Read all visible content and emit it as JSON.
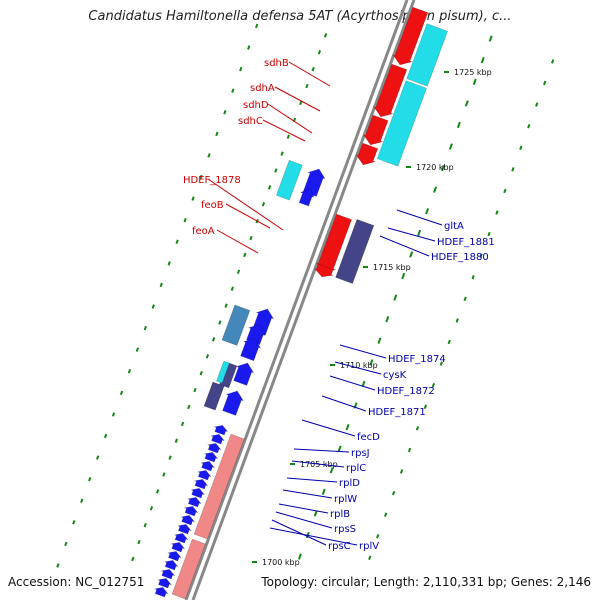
{
  "title": "Candidatus Hamiltonella defensa 5AT (Acyrthosiphon pisum), c...",
  "footer": {
    "accession": "Accession: NC_012751",
    "summary": "Topology: circular; Length: 2,110,331 bp; Genes: 2,146"
  },
  "colors": {
    "forward_cds": "#ee1111",
    "reverse_cds": "#1a1aee",
    "rna": "#22dde8",
    "other": "#444488",
    "pseudo": "#f08888",
    "tick": "#118811",
    "backbone": "#888888",
    "label_forward": "#cc0000",
    "label_reverse": "#0000aa"
  },
  "scale_labels": [
    "1725 kbp",
    "1720 kbp",
    "1715 kbp",
    "1710 kbp",
    "1705 kbp",
    "1700 kbp"
  ],
  "left_labels": [
    "sdhB",
    "sdhA",
    "sdhD",
    "sdhC",
    "HDEF_1878",
    "feoB",
    "feoA"
  ],
  "right_labels": [
    "gltA",
    "HDEF_1881",
    "HDEF_1880",
    "HDEF_1874",
    "cysK",
    "HDEF_1872",
    "HDEF_1871",
    "fecD",
    "rpsJ",
    "rplC",
    "rplD",
    "rplW",
    "rplB",
    "rpsS",
    "rpsC",
    "rplV"
  ]
}
